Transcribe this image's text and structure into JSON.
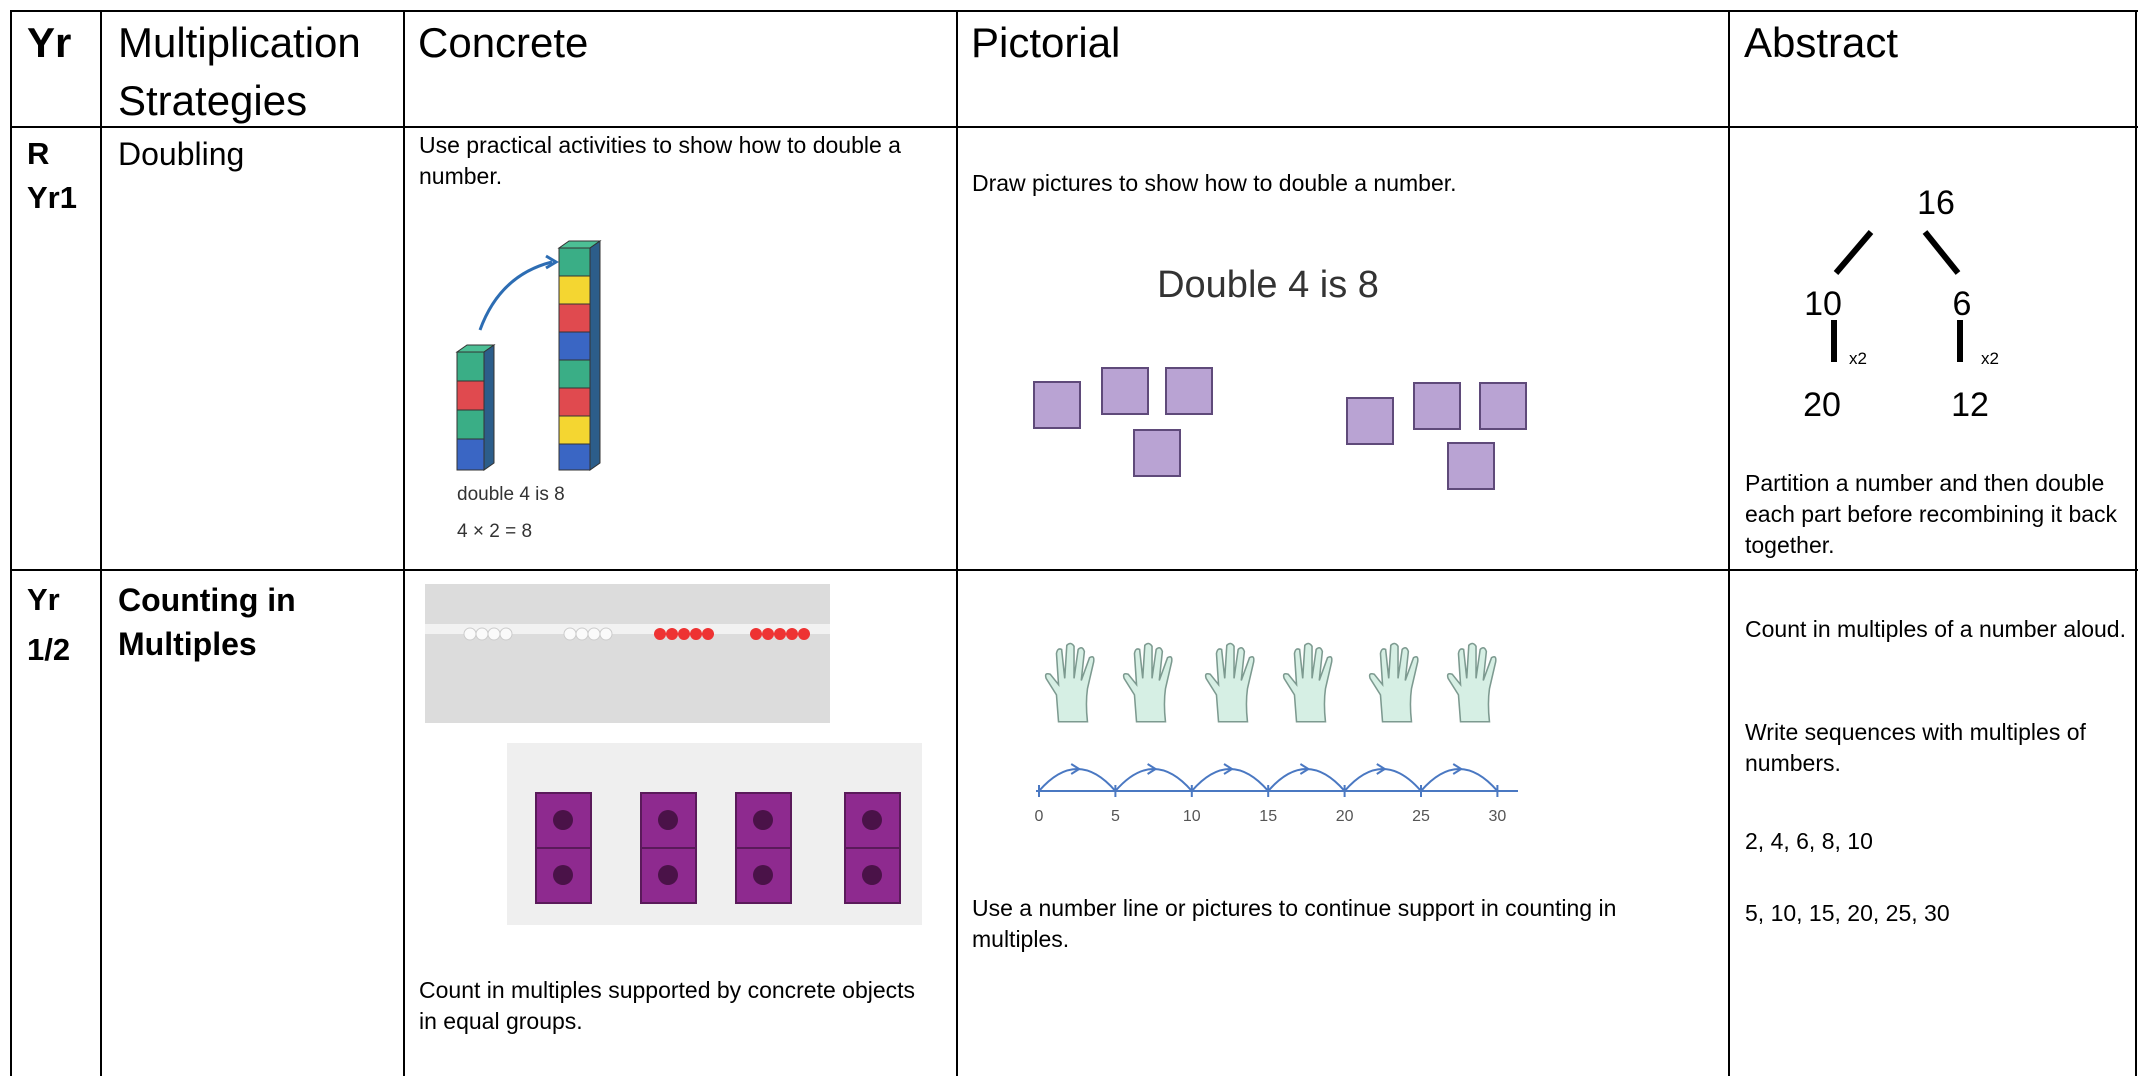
{
  "table": {
    "header": [
      "Yr",
      "Multiplication Strategies",
      "Concrete",
      "Pictorial",
      "Abstract"
    ],
    "rows": [
      {
        "year": [
          "R",
          "Yr1"
        ],
        "strategy": "Doubling",
        "concrete": {
          "text": "Use practical activities to show how to double a number.",
          "caption": [
            "double 4 is 8",
            "4 × 2 = 8"
          ]
        },
        "pictorial": {
          "text": "Draw pictures to show how to double a number.",
          "heading": "Double 4 is 8"
        },
        "abstract": {
          "tree": {
            "top": "16",
            "parts": [
              "10",
              "6"
            ],
            "multipliers": [
              "x2",
              "x2"
            ],
            "results": [
              "20",
              "12"
            ]
          },
          "text": "Partition a number and then double each part before recombining it back together."
        }
      },
      {
        "year": [
          "Yr",
          "1/2"
        ],
        "strategy": "Counting in Multiples",
        "concrete": {
          "text": "Count in multiples supported by concrete objects in equal groups."
        },
        "pictorial": {
          "number_line": [
            "0",
            "5",
            "10",
            "15",
            "20",
            "25",
            "30"
          ],
          "text": "Use a number line or pictures to continue support in counting in multiples."
        },
        "abstract": {
          "texts": [
            "Count in multiples of a number aloud.",
            "Write sequences with multiples of numbers.",
            "2, 4, 6, 8, 10",
            "5, 10, 15, 20, 25, 30"
          ]
        }
      }
    ]
  }
}
